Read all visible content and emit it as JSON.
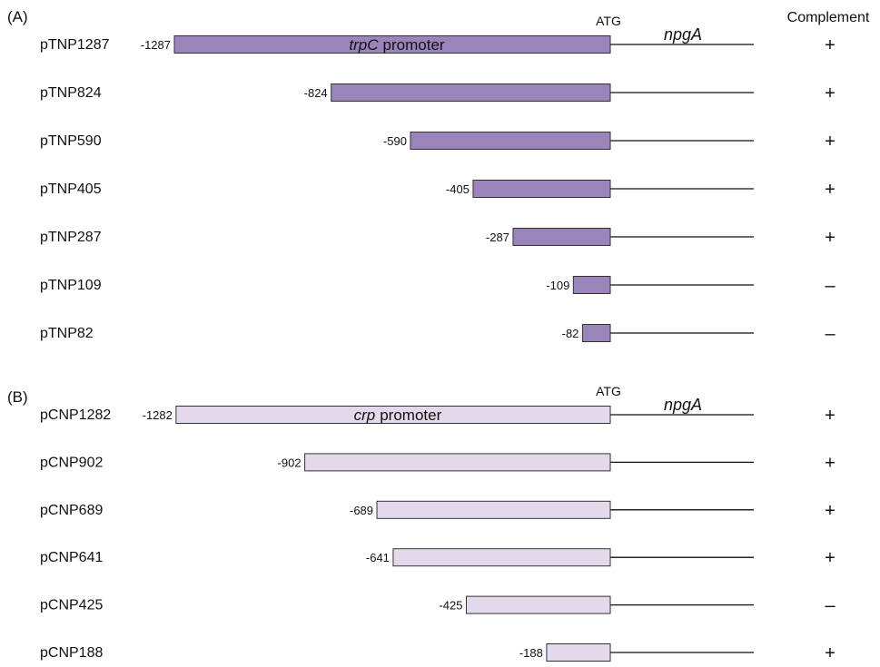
{
  "colors": {
    "panel_a_fill": "#9a85bb",
    "panel_b_fill": "#e3d9ea",
    "outline": "#333333",
    "line": "#111111"
  },
  "header": {
    "complement": "Complement"
  },
  "panels": [
    {
      "label": "(A)",
      "fill_key": "panel_a_fill",
      "atg": "ATG",
      "gene": "npgA",
      "promoter_name": "trpC",
      "promoter_word": "promoter",
      "constructs": [
        {
          "name": "pTNP1287",
          "start": -1287,
          "start_label": "-1287",
          "complement": "+"
        },
        {
          "name": "pTNP824",
          "start": -824,
          "start_label": "-824",
          "complement": "+"
        },
        {
          "name": "pTNP590",
          "start": -590,
          "start_label": "-590",
          "complement": "+"
        },
        {
          "name": "pTNP405",
          "start": -405,
          "start_label": "-405",
          "complement": "+"
        },
        {
          "name": "pTNP287",
          "start": -287,
          "start_label": "-287",
          "complement": "+"
        },
        {
          "name": "pTNP109",
          "start": -109,
          "start_label": "-109",
          "complement": "–"
        },
        {
          "name": "pTNP82",
          "start": -82,
          "start_label": "-82",
          "complement": "–"
        }
      ]
    },
    {
      "label": "(B)",
      "fill_key": "panel_b_fill",
      "atg": "ATG",
      "gene": "npgA",
      "promoter_name": "crp",
      "promoter_word": "promoter",
      "constructs": [
        {
          "name": "pCNP1282",
          "start": -1282,
          "start_label": "-1282",
          "complement": "+"
        },
        {
          "name": "pCNP902",
          "start": -902,
          "start_label": "-902",
          "complement": "+"
        },
        {
          "name": "pCNP689",
          "start": -689,
          "start_label": "-689",
          "complement": "+"
        },
        {
          "name": "pCNP641",
          "start": -641,
          "start_label": "-641",
          "complement": "+"
        },
        {
          "name": "pCNP425",
          "start": -425,
          "start_label": "-425",
          "complement": "–"
        },
        {
          "name": "pCNP188",
          "start": -188,
          "start_label": "-188",
          "complement": "+"
        }
      ]
    }
  ]
}
